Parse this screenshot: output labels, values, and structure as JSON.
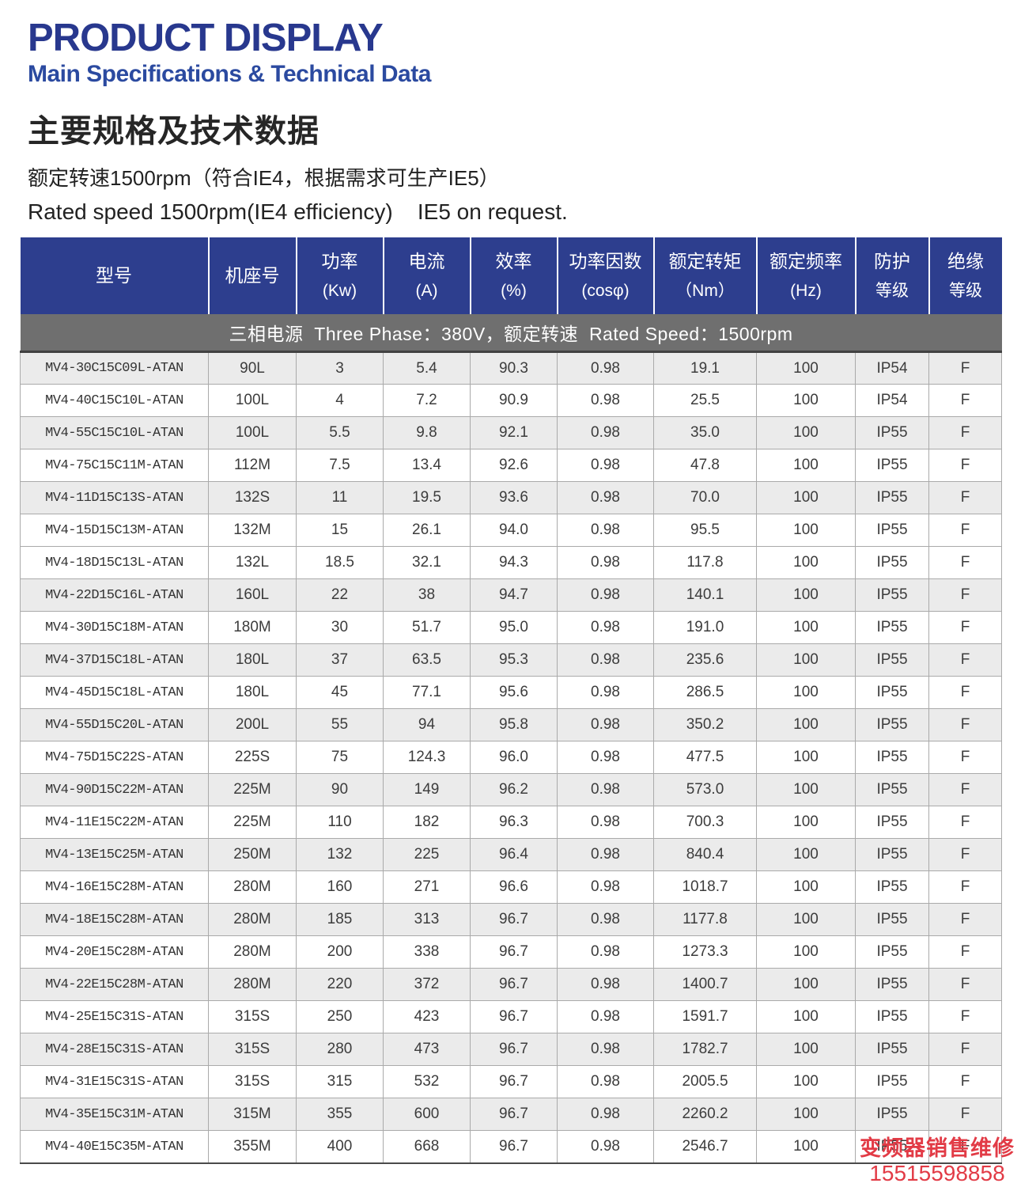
{
  "page": {
    "title": "PRODUCT DISPLAY",
    "subtitle": "Main Specifications & Technical Data",
    "cn_title": "主要规格及技术数据",
    "cn_note": "额定转速1500rpm（符合IE4，根据需求可生产IE5）",
    "en_note": "Rated speed 1500rpm(IE4 efficiency)    IE5 on request."
  },
  "table": {
    "banner": "三相电源  Three Phase：380V，额定转速  Rated Speed：1500rpm",
    "columns": [
      {
        "line1": "型号",
        "line2": ""
      },
      {
        "line1": "机座号",
        "line2": ""
      },
      {
        "line1": "功率",
        "line2": "(Kw)"
      },
      {
        "line1": "电流",
        "line2": "(A)"
      },
      {
        "line1": "效率",
        "line2": "(%)"
      },
      {
        "line1": "功率因数",
        "line2": "(cosφ)"
      },
      {
        "line1": "额定转矩",
        "line2": "（Nm）"
      },
      {
        "line1": "额定频率",
        "line2": "(Hz)"
      },
      {
        "line1": "防护",
        "line2": "等级"
      },
      {
        "line1": "绝缘",
        "line2": "等级"
      }
    ],
    "rows": [
      {
        "model": "MV4-30C15C09L-ATAN",
        "frame": "90L",
        "power_kw": "3",
        "current_a": "5.4",
        "efficiency_pct": "90.3",
        "power_factor": "0.98",
        "torque_nm": "19.1",
        "freq_hz": "100",
        "protection": "IP54",
        "insulation": "F",
        "shaded": true
      },
      {
        "model": "MV4-40C15C10L-ATAN",
        "frame": "100L",
        "power_kw": "4",
        "current_a": "7.2",
        "efficiency_pct": "90.9",
        "power_factor": "0.98",
        "torque_nm": "25.5",
        "freq_hz": "100",
        "protection": "IP54",
        "insulation": "F",
        "shaded": false
      },
      {
        "model": "MV4-55C15C10L-ATAN",
        "frame": "100L",
        "power_kw": "5.5",
        "current_a": "9.8",
        "efficiency_pct": "92.1",
        "power_factor": "0.98",
        "torque_nm": "35.0",
        "freq_hz": "100",
        "protection": "IP55",
        "insulation": "F",
        "shaded": true
      },
      {
        "model": "MV4-75C15C11M-ATAN",
        "frame": "112M",
        "power_kw": "7.5",
        "current_a": "13.4",
        "efficiency_pct": "92.6",
        "power_factor": "0.98",
        "torque_nm": "47.8",
        "freq_hz": "100",
        "protection": "IP55",
        "insulation": "F",
        "shaded": false
      },
      {
        "model": "MV4-11D15C13S-ATAN",
        "frame": "132S",
        "power_kw": "11",
        "current_a": "19.5",
        "efficiency_pct": "93.6",
        "power_factor": "0.98",
        "torque_nm": "70.0",
        "freq_hz": "100",
        "protection": "IP55",
        "insulation": "F",
        "shaded": true
      },
      {
        "model": "MV4-15D15C13M-ATAN",
        "frame": "132M",
        "power_kw": "15",
        "current_a": "26.1",
        "efficiency_pct": "94.0",
        "power_factor": "0.98",
        "torque_nm": "95.5",
        "freq_hz": "100",
        "protection": "IP55",
        "insulation": "F",
        "shaded": false
      },
      {
        "model": "MV4-18D15C13L-ATAN",
        "frame": "132L",
        "power_kw": "18.5",
        "current_a": "32.1",
        "efficiency_pct": "94.3",
        "power_factor": "0.98",
        "torque_nm": "117.8",
        "freq_hz": "100",
        "protection": "IP55",
        "insulation": "F",
        "shaded": false
      },
      {
        "model": "MV4-22D15C16L-ATAN",
        "frame": "160L",
        "power_kw": "22",
        "current_a": "38",
        "efficiency_pct": "94.7",
        "power_factor": "0.98",
        "torque_nm": "140.1",
        "freq_hz": "100",
        "protection": "IP55",
        "insulation": "F",
        "shaded": true
      },
      {
        "model": "MV4-30D15C18M-ATAN",
        "frame": "180M",
        "power_kw": "30",
        "current_a": "51.7",
        "efficiency_pct": "95.0",
        "power_factor": "0.98",
        "torque_nm": "191.0",
        "freq_hz": "100",
        "protection": "IP55",
        "insulation": "F",
        "shaded": false
      },
      {
        "model": "MV4-37D15C18L-ATAN",
        "frame": "180L",
        "power_kw": "37",
        "current_a": "63.5",
        "efficiency_pct": "95.3",
        "power_factor": "0.98",
        "torque_nm": "235.6",
        "freq_hz": "100",
        "protection": "IP55",
        "insulation": "F",
        "shaded": true
      },
      {
        "model": "MV4-45D15C18L-ATAN",
        "frame": "180L",
        "power_kw": "45",
        "current_a": "77.1",
        "efficiency_pct": "95.6",
        "power_factor": "0.98",
        "torque_nm": "286.5",
        "freq_hz": "100",
        "protection": "IP55",
        "insulation": "F",
        "shaded": false
      },
      {
        "model": "MV4-55D15C20L-ATAN",
        "frame": "200L",
        "power_kw": "55",
        "current_a": "94",
        "efficiency_pct": "95.8",
        "power_factor": "0.98",
        "torque_nm": "350.2",
        "freq_hz": "100",
        "protection": "IP55",
        "insulation": "F",
        "shaded": true
      },
      {
        "model": "MV4-75D15C22S-ATAN",
        "frame": "225S",
        "power_kw": "75",
        "current_a": "124.3",
        "efficiency_pct": "96.0",
        "power_factor": "0.98",
        "torque_nm": "477.5",
        "freq_hz": "100",
        "protection": "IP55",
        "insulation": "F",
        "shaded": false
      },
      {
        "model": "MV4-90D15C22M-ATAN",
        "frame": "225M",
        "power_kw": "90",
        "current_a": "149",
        "efficiency_pct": "96.2",
        "power_factor": "0.98",
        "torque_nm": "573.0",
        "freq_hz": "100",
        "protection": "IP55",
        "insulation": "F",
        "shaded": true
      },
      {
        "model": "MV4-11E15C22M-ATAN",
        "frame": "225M",
        "power_kw": "110",
        "current_a": "182",
        "efficiency_pct": "96.3",
        "power_factor": "0.98",
        "torque_nm": "700.3",
        "freq_hz": "100",
        "protection": "IP55",
        "insulation": "F",
        "shaded": false
      },
      {
        "model": "MV4-13E15C25M-ATAN",
        "frame": "250M",
        "power_kw": "132",
        "current_a": "225",
        "efficiency_pct": "96.4",
        "power_factor": "0.98",
        "torque_nm": "840.4",
        "freq_hz": "100",
        "protection": "IP55",
        "insulation": "F",
        "shaded": true
      },
      {
        "model": "MV4-16E15C28M-ATAN",
        "frame": "280M",
        "power_kw": "160",
        "current_a": "271",
        "efficiency_pct": "96.6",
        "power_factor": "0.98",
        "torque_nm": "1018.7",
        "freq_hz": "100",
        "protection": "IP55",
        "insulation": "F",
        "shaded": false
      },
      {
        "model": "MV4-18E15C28M-ATAN",
        "frame": "280M",
        "power_kw": "185",
        "current_a": "313",
        "efficiency_pct": "96.7",
        "power_factor": "0.98",
        "torque_nm": "1177.8",
        "freq_hz": "100",
        "protection": "IP55",
        "insulation": "F",
        "shaded": true
      },
      {
        "model": "MV4-20E15C28M-ATAN",
        "frame": "280M",
        "power_kw": "200",
        "current_a": "338",
        "efficiency_pct": "96.7",
        "power_factor": "0.98",
        "torque_nm": "1273.3",
        "freq_hz": "100",
        "protection": "IP55",
        "insulation": "F",
        "shaded": false
      },
      {
        "model": "MV4-22E15C28M-ATAN",
        "frame": "280M",
        "power_kw": "220",
        "current_a": "372",
        "efficiency_pct": "96.7",
        "power_factor": "0.98",
        "torque_nm": "1400.7",
        "freq_hz": "100",
        "protection": "IP55",
        "insulation": "F",
        "shaded": true
      },
      {
        "model": "MV4-25E15C31S-ATAN",
        "frame": "315S",
        "power_kw": "250",
        "current_a": "423",
        "efficiency_pct": "96.7",
        "power_factor": "0.98",
        "torque_nm": "1591.7",
        "freq_hz": "100",
        "protection": "IP55",
        "insulation": "F",
        "shaded": false
      },
      {
        "model": "MV4-28E15C31S-ATAN",
        "frame": "315S",
        "power_kw": "280",
        "current_a": "473",
        "efficiency_pct": "96.7",
        "power_factor": "0.98",
        "torque_nm": "1782.7",
        "freq_hz": "100",
        "protection": "IP55",
        "insulation": "F",
        "shaded": true
      },
      {
        "model": "MV4-31E15C31S-ATAN",
        "frame": "315S",
        "power_kw": "315",
        "current_a": "532",
        "efficiency_pct": "96.7",
        "power_factor": "0.98",
        "torque_nm": "2005.5",
        "freq_hz": "100",
        "protection": "IP55",
        "insulation": "F",
        "shaded": false
      },
      {
        "model": "MV4-35E15C31M-ATAN",
        "frame": "315M",
        "power_kw": "355",
        "current_a": "600",
        "efficiency_pct": "96.7",
        "power_factor": "0.98",
        "torque_nm": "2260.2",
        "freq_hz": "100",
        "protection": "IP55",
        "insulation": "F",
        "shaded": true
      },
      {
        "model": "MV4-40E15C35M-ATAN",
        "frame": "355M",
        "power_kw": "400",
        "current_a": "668",
        "efficiency_pct": "96.7",
        "power_factor": "0.98",
        "torque_nm": "2546.7",
        "freq_hz": "100",
        "protection": "IP55",
        "insulation": "F",
        "shaded": false
      }
    ]
  },
  "watermark": {
    "line1": "变频器销售维修",
    "line2": "15515598858"
  },
  "colors": {
    "title_blue": "#28388e",
    "subtitle_blue": "#2b4aa0",
    "header_blue": "#2d3e8e",
    "banner_gray": "#6f6f6f",
    "row_shade": "#ebebeb",
    "watermark_red": "#e23b46"
  }
}
